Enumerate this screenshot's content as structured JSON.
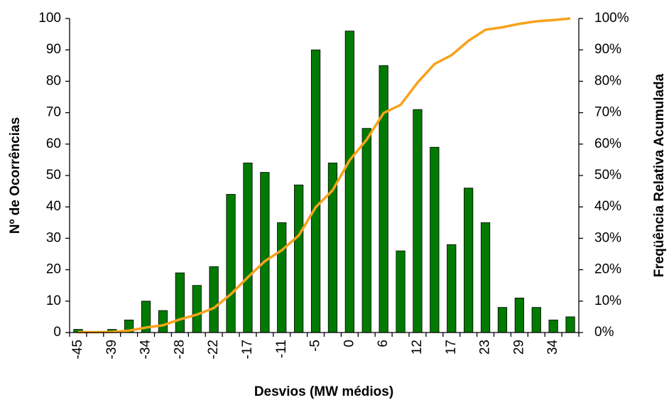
{
  "chart_data": {
    "type": "bar",
    "x_label": "Desvios (MW médios)",
    "y_label": "Nº de Ocorrências",
    "y2_label": "Freqüência Relativa Acumulada",
    "categories": [
      -45,
      null,
      -39,
      null,
      -34,
      null,
      -28,
      null,
      -22,
      null,
      -17,
      null,
      -11,
      null,
      -5,
      null,
      0,
      null,
      6,
      null,
      12,
      null,
      17,
      null,
      23,
      null,
      29,
      null,
      34,
      null
    ],
    "series": [
      {
        "type": "bar",
        "color": "#007a00",
        "values": [
          1,
          0,
          1,
          4,
          10,
          7,
          19,
          15,
          21,
          44,
          54,
          51,
          35,
          47,
          90,
          54,
          96,
          65,
          85,
          26,
          71,
          59,
          28,
          46,
          35,
          8,
          11,
          8,
          4,
          5
        ]
      },
      {
        "type": "line",
        "axis": "y2",
        "color": "#f7a21b",
        "values": [
          0.1,
          0.1,
          0.2,
          0.6,
          1.6,
          2.3,
          4.2,
          5.7,
          7.8,
          12.2,
          17.6,
          22.7,
          26.2,
          30.9,
          39.9,
          45.3,
          54.9,
          61.4,
          69.9,
          72.5,
          79.6,
          85.5,
          88.3,
          92.9,
          96.4,
          97.2,
          98.3,
          99.1,
          99.5,
          100
        ]
      }
    ],
    "ylim": [
      0,
      100
    ],
    "yticks": [
      0,
      10,
      20,
      30,
      40,
      50,
      60,
      70,
      80,
      90,
      100
    ],
    "y2lim": [
      0,
      100
    ],
    "y2ticks": [
      {
        "value": 0,
        "label": "0%"
      },
      {
        "value": 10,
        "label": "10%"
      },
      {
        "value": 20,
        "label": "20%"
      },
      {
        "value": 30,
        "label": "30%"
      },
      {
        "value": 40,
        "label": "40%"
      },
      {
        "value": 50,
        "label": "50%"
      },
      {
        "value": 60,
        "label": "60%"
      },
      {
        "value": 70,
        "label": "70%"
      },
      {
        "value": 80,
        "label": "80%"
      },
      {
        "value": 90,
        "label": "90%"
      },
      {
        "value": 100,
        "label": "100%"
      }
    ],
    "grid": false
  }
}
